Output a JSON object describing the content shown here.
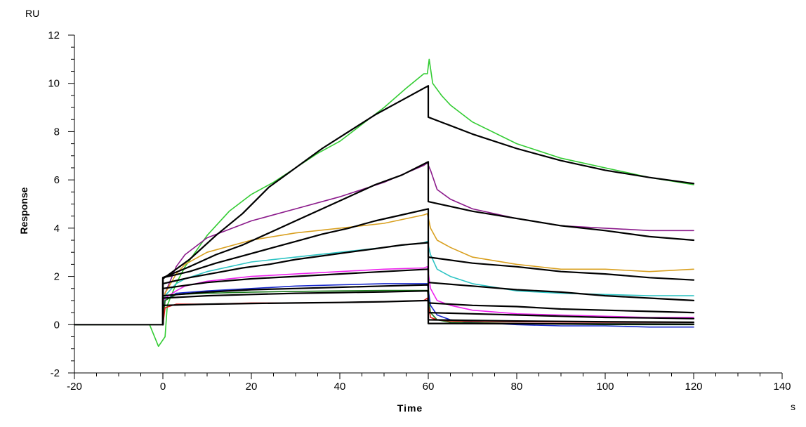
{
  "chart_data": {
    "type": "line",
    "title": "",
    "xlabel": "Time",
    "ylabel": "Response",
    "x_unit": "s",
    "y_unit": "RU",
    "xlim": [
      -20,
      140
    ],
    "ylim": [
      -2,
      12
    ],
    "x_ticks": [
      -20,
      0,
      20,
      40,
      60,
      80,
      100,
      120,
      140
    ],
    "y_ticks": [
      -2,
      0,
      2,
      4,
      6,
      8,
      10,
      12
    ],
    "grid": false,
    "legend": "none",
    "series": [
      {
        "color": "#33cc33",
        "style": "data",
        "points": [
          [
            -20,
            0
          ],
          [
            -3,
            0
          ],
          [
            -1,
            -0.9
          ],
          [
            0.5,
            -0.5
          ],
          [
            1,
            0.8
          ],
          [
            3,
            1.7
          ],
          [
            5,
            2.4
          ],
          [
            10,
            3.7
          ],
          [
            15,
            4.7
          ],
          [
            20,
            5.4
          ],
          [
            25,
            5.9
          ],
          [
            30,
            6.5
          ],
          [
            35,
            7.1
          ],
          [
            40,
            7.6
          ],
          [
            45,
            8.3
          ],
          [
            50,
            9.0
          ],
          [
            55,
            9.8
          ],
          [
            59,
            10.4
          ],
          [
            59.8,
            10.4
          ],
          [
            60.2,
            11.0
          ],
          [
            61,
            10.0
          ],
          [
            63,
            9.5
          ],
          [
            65,
            9.1
          ],
          [
            70,
            8.4
          ],
          [
            80,
            7.5
          ],
          [
            90,
            6.9
          ],
          [
            100,
            6.5
          ],
          [
            110,
            6.1
          ],
          [
            120,
            5.8
          ]
        ]
      },
      {
        "color": "#8b1a8b",
        "style": "data",
        "points": [
          [
            0,
            0
          ],
          [
            0.5,
            1.3
          ],
          [
            3,
            2.4
          ],
          [
            5,
            2.9
          ],
          [
            10,
            3.6
          ],
          [
            20,
            4.3
          ],
          [
            30,
            4.8
          ],
          [
            40,
            5.3
          ],
          [
            50,
            5.9
          ],
          [
            59,
            6.6
          ],
          [
            59.8,
            6.7
          ],
          [
            60.5,
            6.4
          ],
          [
            62,
            5.6
          ],
          [
            65,
            5.2
          ],
          [
            70,
            4.8
          ],
          [
            80,
            4.4
          ],
          [
            90,
            4.1
          ],
          [
            100,
            4.0
          ],
          [
            110,
            3.9
          ],
          [
            120,
            3.9
          ]
        ]
      },
      {
        "color": "#d9a020",
        "style": "data",
        "points": [
          [
            0,
            0
          ],
          [
            0.5,
            1.3
          ],
          [
            3,
            2.1
          ],
          [
            5,
            2.5
          ],
          [
            10,
            3.0
          ],
          [
            20,
            3.5
          ],
          [
            30,
            3.8
          ],
          [
            40,
            4.0
          ],
          [
            50,
            4.2
          ],
          [
            59,
            4.55
          ],
          [
            59.8,
            4.6
          ],
          [
            60.5,
            4.0
          ],
          [
            62,
            3.5
          ],
          [
            65,
            3.2
          ],
          [
            70,
            2.8
          ],
          [
            80,
            2.5
          ],
          [
            90,
            2.3
          ],
          [
            100,
            2.3
          ],
          [
            110,
            2.2
          ],
          [
            120,
            2.3
          ]
        ]
      },
      {
        "color": "#2ec4c4",
        "style": "data",
        "points": [
          [
            0,
            0
          ],
          [
            0.5,
            1.2
          ],
          [
            3,
            1.7
          ],
          [
            5,
            1.9
          ],
          [
            10,
            2.2
          ],
          [
            20,
            2.6
          ],
          [
            30,
            2.8
          ],
          [
            40,
            3.0
          ],
          [
            50,
            3.2
          ],
          [
            59,
            3.4
          ],
          [
            59.8,
            3.45
          ],
          [
            60.5,
            2.9
          ],
          [
            62,
            2.3
          ],
          [
            65,
            2.0
          ],
          [
            70,
            1.7
          ],
          [
            80,
            1.4
          ],
          [
            90,
            1.3
          ],
          [
            100,
            1.25
          ],
          [
            110,
            1.2
          ],
          [
            120,
            1.2
          ]
        ]
      },
      {
        "color": "#ee22ee",
        "style": "data",
        "points": [
          [
            0,
            0
          ],
          [
            0.5,
            1.1
          ],
          [
            3,
            1.4
          ],
          [
            5,
            1.6
          ],
          [
            10,
            1.8
          ],
          [
            20,
            2.0
          ],
          [
            30,
            2.1
          ],
          [
            40,
            2.2
          ],
          [
            50,
            2.3
          ],
          [
            59,
            2.35
          ],
          [
            59.8,
            2.4
          ],
          [
            60.5,
            1.5
          ],
          [
            62,
            1.0
          ],
          [
            65,
            0.8
          ],
          [
            70,
            0.6
          ],
          [
            80,
            0.45
          ],
          [
            90,
            0.4
          ],
          [
            100,
            0.35
          ],
          [
            110,
            0.3
          ],
          [
            120,
            0.3
          ]
        ]
      },
      {
        "color": "#1a2acc",
        "style": "data",
        "points": [
          [
            0,
            0
          ],
          [
            0.5,
            1.0
          ],
          [
            3,
            1.3
          ],
          [
            10,
            1.4
          ],
          [
            20,
            1.5
          ],
          [
            30,
            1.6
          ],
          [
            40,
            1.65
          ],
          [
            50,
            1.7
          ],
          [
            59,
            1.7
          ],
          [
            59.8,
            1.7
          ],
          [
            60.5,
            0.8
          ],
          [
            62,
            0.4
          ],
          [
            65,
            0.2
          ],
          [
            70,
            0.1
          ],
          [
            80,
            0.0
          ],
          [
            90,
            -0.05
          ],
          [
            100,
            -0.05
          ],
          [
            110,
            -0.1
          ],
          [
            120,
            -0.1
          ]
        ]
      },
      {
        "color": "#1a7a1a",
        "style": "data",
        "points": [
          [
            0,
            0
          ],
          [
            0.5,
            1.0
          ],
          [
            3,
            1.25
          ],
          [
            10,
            1.3
          ],
          [
            20,
            1.35
          ],
          [
            30,
            1.38
          ],
          [
            40,
            1.4
          ],
          [
            50,
            1.42
          ],
          [
            59,
            1.42
          ],
          [
            59.8,
            1.42
          ],
          [
            60.5,
            0.5
          ],
          [
            62,
            0.2
          ],
          [
            65,
            0.1
          ],
          [
            80,
            0.05
          ],
          [
            100,
            0.0
          ],
          [
            120,
            0.0
          ]
        ]
      },
      {
        "color": "#dd1a1a",
        "style": "data",
        "points": [
          [
            0,
            0
          ],
          [
            0.5,
            0.7
          ],
          [
            3,
            0.85
          ],
          [
            10,
            0.85
          ],
          [
            20,
            0.9
          ],
          [
            30,
            0.9
          ],
          [
            40,
            0.92
          ],
          [
            50,
            0.95
          ],
          [
            59,
            1.0
          ],
          [
            59.8,
            1.1
          ],
          [
            60.5,
            0.3
          ],
          [
            62,
            0.2
          ],
          [
            65,
            0.15
          ],
          [
            80,
            0.12
          ],
          [
            100,
            0.1
          ],
          [
            120,
            0.1
          ]
        ]
      },
      {
        "color": "#000000",
        "style": "fit",
        "points": [
          [
            -20,
            0
          ],
          [
            0,
            0
          ],
          [
            0,
            1.9
          ],
          [
            6,
            2.7
          ],
          [
            12,
            3.7
          ],
          [
            18,
            4.6
          ],
          [
            24,
            5.7
          ],
          [
            30,
            6.5
          ],
          [
            36,
            7.3
          ],
          [
            42,
            8.0
          ],
          [
            48,
            8.7
          ],
          [
            54,
            9.3
          ],
          [
            60,
            9.9
          ],
          [
            60,
            8.6
          ],
          [
            70,
            7.9
          ],
          [
            80,
            7.3
          ],
          [
            90,
            6.8
          ],
          [
            100,
            6.4
          ],
          [
            110,
            6.1
          ],
          [
            120,
            5.85
          ]
        ]
      },
      {
        "color": "#000000",
        "style": "fit",
        "points": [
          [
            0,
            0
          ],
          [
            0,
            1.95
          ],
          [
            6,
            2.4
          ],
          [
            12,
            2.9
          ],
          [
            18,
            3.3
          ],
          [
            24,
            3.8
          ],
          [
            30,
            4.3
          ],
          [
            36,
            4.8
          ],
          [
            42,
            5.3
          ],
          [
            48,
            5.8
          ],
          [
            54,
            6.2
          ],
          [
            60,
            6.75
          ],
          [
            60,
            5.1
          ],
          [
            70,
            4.7
          ],
          [
            80,
            4.4
          ],
          [
            90,
            4.1
          ],
          [
            100,
            3.9
          ],
          [
            110,
            3.65
          ],
          [
            120,
            3.5
          ]
        ]
      },
      {
        "color": "#000000",
        "style": "fit",
        "points": [
          [
            0,
            0
          ],
          [
            0,
            1.95
          ],
          [
            6,
            2.2
          ],
          [
            12,
            2.55
          ],
          [
            18,
            2.85
          ],
          [
            24,
            3.15
          ],
          [
            30,
            3.45
          ],
          [
            36,
            3.75
          ],
          [
            42,
            4.0
          ],
          [
            48,
            4.3
          ],
          [
            54,
            4.55
          ],
          [
            60,
            4.8
          ],
          [
            60,
            2.8
          ],
          [
            70,
            2.55
          ],
          [
            80,
            2.4
          ],
          [
            90,
            2.2
          ],
          [
            100,
            2.1
          ],
          [
            110,
            1.95
          ],
          [
            120,
            1.85
          ]
        ]
      },
      {
        "color": "#000000",
        "style": "fit",
        "points": [
          [
            0,
            0
          ],
          [
            0,
            1.7
          ],
          [
            6,
            1.95
          ],
          [
            12,
            2.15
          ],
          [
            18,
            2.35
          ],
          [
            24,
            2.5
          ],
          [
            30,
            2.7
          ],
          [
            36,
            2.85
          ],
          [
            42,
            3.0
          ],
          [
            48,
            3.15
          ],
          [
            54,
            3.3
          ],
          [
            60,
            3.4
          ],
          [
            60,
            1.75
          ],
          [
            70,
            1.6
          ],
          [
            80,
            1.45
          ],
          [
            90,
            1.35
          ],
          [
            100,
            1.2
          ],
          [
            110,
            1.1
          ],
          [
            120,
            1.0
          ]
        ]
      },
      {
        "color": "#000000",
        "style": "fit",
        "points": [
          [
            0,
            0
          ],
          [
            0,
            1.5
          ],
          [
            10,
            1.75
          ],
          [
            20,
            1.9
          ],
          [
            30,
            2.0
          ],
          [
            40,
            2.1
          ],
          [
            50,
            2.2
          ],
          [
            60,
            2.3
          ],
          [
            60,
            0.9
          ],
          [
            70,
            0.8
          ],
          [
            80,
            0.75
          ],
          [
            90,
            0.65
          ],
          [
            100,
            0.6
          ],
          [
            110,
            0.55
          ],
          [
            120,
            0.5
          ]
        ]
      },
      {
        "color": "#000000",
        "style": "fit",
        "points": [
          [
            0,
            0
          ],
          [
            0,
            1.2
          ],
          [
            10,
            1.35
          ],
          [
            20,
            1.45
          ],
          [
            30,
            1.5
          ],
          [
            40,
            1.55
          ],
          [
            50,
            1.6
          ],
          [
            60,
            1.65
          ],
          [
            60,
            0.5
          ],
          [
            70,
            0.45
          ],
          [
            80,
            0.4
          ],
          [
            90,
            0.35
          ],
          [
            100,
            0.3
          ],
          [
            110,
            0.28
          ],
          [
            120,
            0.25
          ]
        ]
      },
      {
        "color": "#000000",
        "style": "fit",
        "points": [
          [
            0,
            0
          ],
          [
            0,
            1.1
          ],
          [
            10,
            1.2
          ],
          [
            20,
            1.25
          ],
          [
            30,
            1.3
          ],
          [
            40,
            1.33
          ],
          [
            50,
            1.36
          ],
          [
            60,
            1.4
          ],
          [
            60,
            0.2
          ],
          [
            80,
            0.15
          ],
          [
            100,
            0.12
          ],
          [
            120,
            0.1
          ]
        ]
      },
      {
        "color": "#000000",
        "style": "fit",
        "points": [
          [
            0,
            0
          ],
          [
            0,
            0.8
          ],
          [
            10,
            0.85
          ],
          [
            20,
            0.88
          ],
          [
            30,
            0.9
          ],
          [
            40,
            0.92
          ],
          [
            50,
            0.95
          ],
          [
            60,
            1.0
          ],
          [
            60,
            0.05
          ],
          [
            80,
            0.04
          ],
          [
            100,
            0.03
          ],
          [
            120,
            0.02
          ]
        ]
      }
    ]
  }
}
